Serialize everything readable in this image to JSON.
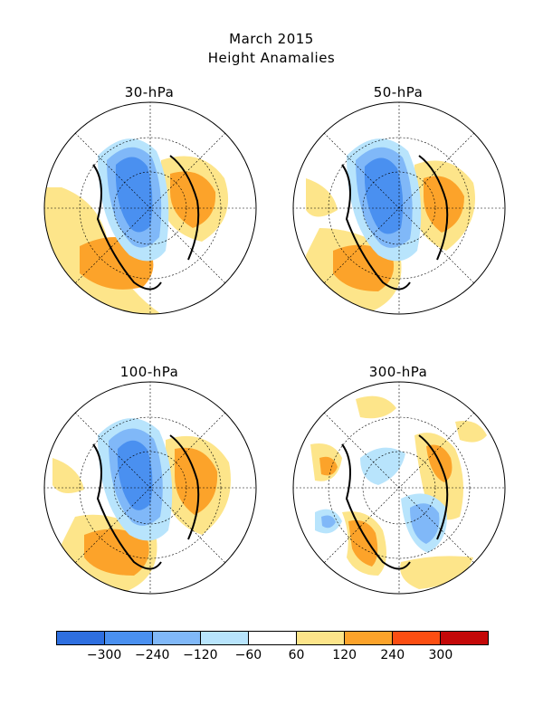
{
  "title": {
    "line1": "March 2015",
    "line2": "Height Anamalies"
  },
  "panels": [
    {
      "label": "30-hPa"
    },
    {
      "label": "50-hPa"
    },
    {
      "label": "100-hPa"
    },
    {
      "label": "300-hPa"
    }
  ],
  "colorbar": {
    "colors": [
      "#2e6fe0",
      "#4a90f0",
      "#80b8f8",
      "#b8e4fc",
      "#ffffff",
      "#fde58a",
      "#fca32a",
      "#fc4e12",
      "#c40808"
    ],
    "labels": [
      "-300",
      "-240",
      "-120",
      "-60",
      "60",
      "120",
      "240",
      "300"
    ]
  }
}
